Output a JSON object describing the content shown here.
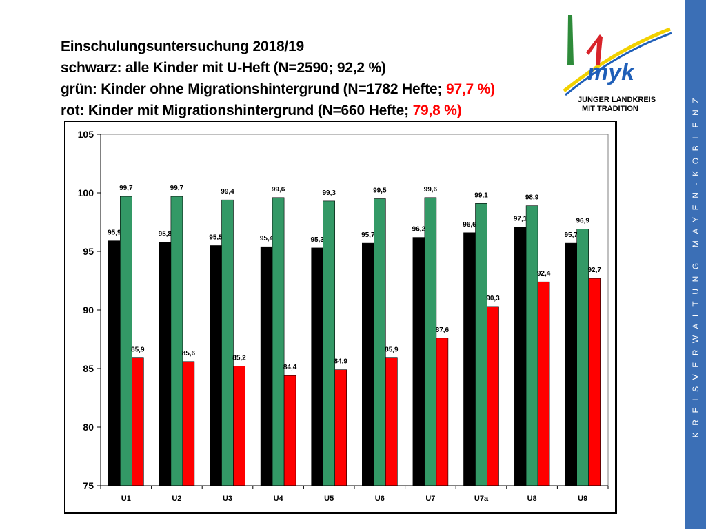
{
  "header": {
    "line1": "Einschulungsuntersuchung 2018/19",
    "line2": "schwarz: alle Kinder mit U-Heft (N=2590; 92,2 %)",
    "line3_prefix": "grün: Kinder ohne Migrationshintergrund (N=1782 Hefte; ",
    "line3_highlight": "97,7 %)",
    "line4_prefix": "rot: Kinder mit Migrationshintergrund (N=660 Hefte; ",
    "line4_highlight": "79,8 %)"
  },
  "logo": {
    "text_main": "myk",
    "text_sub1": "JUNGER LANDKREIS",
    "text_sub2": "MIT TRADITION"
  },
  "sidebar": {
    "text": "KREISVERWALTUNG MAYEN-KOBLENZ",
    "color": "#3b6fb6"
  },
  "chart_data": {
    "type": "bar",
    "categories": [
      "U1",
      "U2",
      "U3",
      "U4",
      "U5",
      "U6",
      "U7",
      "U7a",
      "U8",
      "U9"
    ],
    "series": [
      {
        "color": "#000000",
        "values": [
          95.9,
          95.8,
          95.5,
          95.4,
          95.3,
          95.7,
          96.2,
          96.6,
          97.1,
          95.7
        ],
        "labels": [
          "95,9",
          "95,8",
          "95,5",
          "95,4",
          "95,3",
          "95,7",
          "96,2",
          "96,6",
          "97,1",
          "95,7"
        ]
      },
      {
        "color": "#339966",
        "values": [
          99.7,
          99.7,
          99.4,
          99.6,
          99.3,
          99.5,
          99.6,
          99.1,
          98.9,
          96.9
        ],
        "labels": [
          "99,7",
          "99,7",
          "99,4",
          "99,6",
          "99,3",
          "99,5",
          "99,6",
          "99,1",
          "98,9",
          "96,9"
        ]
      },
      {
        "color": "#ff0000",
        "values": [
          85.9,
          85.6,
          85.2,
          84.4,
          84.9,
          85.9,
          87.6,
          90.3,
          92.4,
          92.7
        ],
        "labels": [
          "85,9",
          "85,6",
          "85,2",
          "84,4",
          "84,9",
          "85,9",
          "87,6",
          "90,3",
          "92,4",
          "92,7"
        ]
      }
    ],
    "ylim": [
      75,
      105
    ],
    "yticks": [
      "75",
      "80",
      "85",
      "90",
      "95",
      "100",
      "105"
    ],
    "grid": false,
    "legend": "none"
  }
}
